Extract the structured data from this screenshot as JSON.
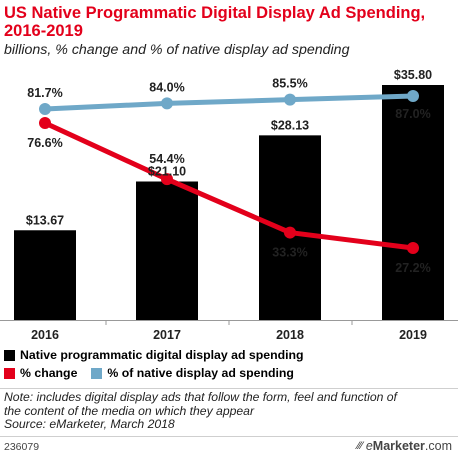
{
  "header": {
    "title_line1": "US Native Programmatic Digital Display Ad Spending,",
    "title_line2": "2016-2019",
    "subtitle": "billions, % change and % of native display ad spending"
  },
  "legend": {
    "spending": "Native programmatic digital display ad spending",
    "change": "% change",
    "share": "% of native display ad spending"
  },
  "note": {
    "line1": "Note: includes digital display ads that follow the form, feel and function of",
    "line2": "the content of the media on which they appear",
    "line3": "Source: eMarketer, March 2018"
  },
  "footer": {
    "id": "236079",
    "brand_mark": "⁄⁄⁄",
    "brand_e": "e",
    "brand_name": "Marketer",
    "brand_tld": ".com"
  },
  "colors": {
    "bar": "#000000",
    "change_line": "#e3001b",
    "share_line": "#6fa8c8",
    "title": "#e3001b"
  },
  "chart_data": {
    "type": "bar",
    "categories": [
      "2016",
      "2017",
      "2018",
      "2019"
    ],
    "series": [
      {
        "name": "Native programmatic digital display ad spending",
        "type": "bar",
        "values": [
          13.67,
          21.1,
          28.13,
          35.8
        ],
        "labels": [
          "$13.67",
          "$21.10",
          "$28.13",
          "$35.80"
        ]
      },
      {
        "name": "% change",
        "type": "line",
        "values": [
          76.6,
          54.4,
          33.3,
          27.2
        ],
        "labels": [
          "76.6%",
          "54.4%",
          "33.3%",
          "27.2%"
        ]
      },
      {
        "name": "% of native display ad spending",
        "type": "line",
        "values": [
          81.7,
          84.0,
          85.5,
          87.0
        ],
        "labels": [
          "81.7%",
          "84.0%",
          "85.5%",
          "87.0%"
        ]
      }
    ],
    "bar_ylim": [
      0,
      40
    ],
    "pct_ylim": [
      0,
      100
    ],
    "grid": false,
    "legend_position": "bottom"
  }
}
